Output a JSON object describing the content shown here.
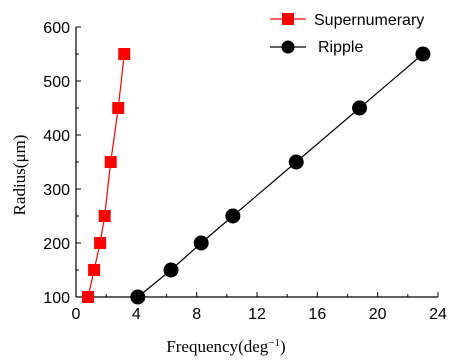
{
  "chart_data": {
    "type": "scatter",
    "xlabel": "Frequency",
    "xlabel_unit": "(deg",
    "xlabel_unit_exp": "−1",
    "xlabel_unit_close": ")",
    "ylabel": "Radius(μm)",
    "xlim": [
      0,
      24
    ],
    "ylim": [
      100,
      600
    ],
    "x_ticks": [
      0,
      4,
      8,
      12,
      16,
      20,
      24
    ],
    "y_ticks": [
      100,
      200,
      300,
      400,
      500,
      600
    ],
    "grid": false,
    "legend_position": "top-right",
    "series": [
      {
        "name": "Supernumerary",
        "marker": "square",
        "color": "#ff0000",
        "points": [
          {
            "x": 0.8,
            "y": 100
          },
          {
            "x": 1.2,
            "y": 150
          },
          {
            "x": 1.6,
            "y": 200
          },
          {
            "x": 1.9,
            "y": 250
          },
          {
            "x": 2.3,
            "y": 350
          },
          {
            "x": 2.8,
            "y": 450
          },
          {
            "x": 3.2,
            "y": 550
          }
        ]
      },
      {
        "name": "Ripple",
        "marker": "circle",
        "color": "#000000",
        "points": [
          {
            "x": 4.1,
            "y": 100
          },
          {
            "x": 6.3,
            "y": 150
          },
          {
            "x": 8.3,
            "y": 200
          },
          {
            "x": 10.4,
            "y": 250
          },
          {
            "x": 14.6,
            "y": 350
          },
          {
            "x": 18.8,
            "y": 450
          },
          {
            "x": 23.0,
            "y": 550
          }
        ]
      }
    ]
  }
}
